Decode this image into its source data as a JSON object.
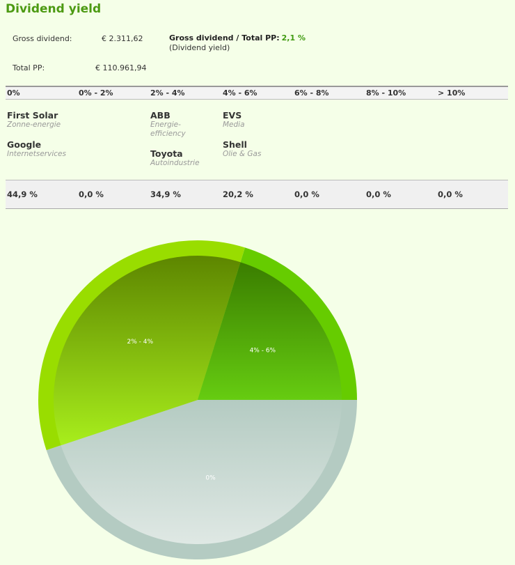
{
  "title": "Dividend yield",
  "summary": {
    "gross_dividend_label": "Gross dividend:",
    "gross_dividend_value": "€ 2.311,62",
    "total_pp_label": "Total PP:",
    "total_pp_value": "€ 110.961,94",
    "yield_label": "Gross dividend / Total PP:",
    "yield_value": "2,1 %",
    "yield_sublabel": "(Dividend yield)"
  },
  "ranges": [
    "0%",
    "0% - 2%",
    "2% - 4%",
    "4% - 6%",
    "6% - 8%",
    "8% - 10%",
    "> 10%"
  ],
  "percentages": [
    "44,9 %",
    "0,0 %",
    "34,9 %",
    "20,2 %",
    "0,0 %",
    "0,0 %",
    "0,0 %"
  ],
  "companies": [
    {
      "name": "First Solar",
      "sector": "Zonne-energie",
      "col": 0,
      "row": 0
    },
    {
      "name": "Google",
      "sector": "Internetservices",
      "col": 0,
      "row": 1
    },
    {
      "name": "ABB",
      "sector": "Energie-efficiency",
      "col": 2,
      "row": 0
    },
    {
      "name": "Toyota",
      "sector": "Autoindustrie",
      "col": 2,
      "row": 1
    },
    {
      "name": "EVS",
      "sector": "Media",
      "col": 3,
      "row": 0
    },
    {
      "name": "Shell",
      "sector": "Olie & Gas",
      "col": 3,
      "row": 1
    }
  ],
  "chart_data": {
    "type": "pie",
    "categories": [
      "0%",
      "2% - 4%",
      "4% - 6%"
    ],
    "values": [
      44.9,
      34.9,
      20.2
    ],
    "colors": [
      "#b4cbc2",
      "#99dd00",
      "#66cc00"
    ]
  }
}
